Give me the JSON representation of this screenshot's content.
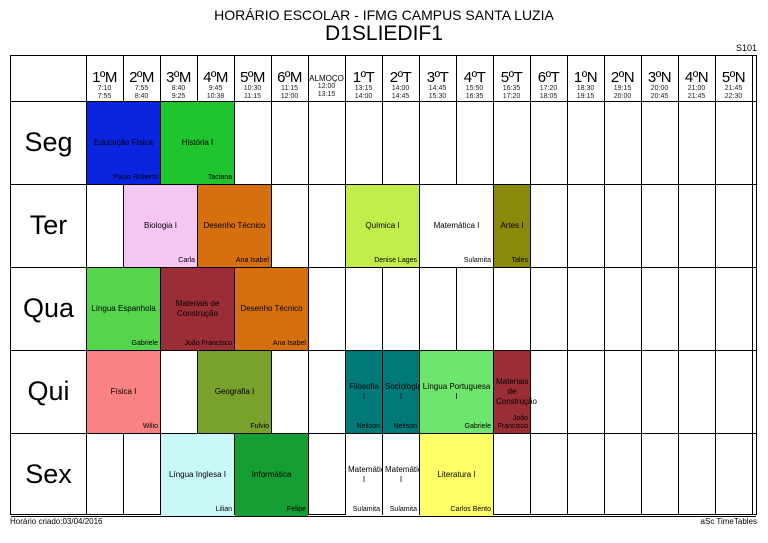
{
  "header": {
    "title": "HORÁRIO ESCOLAR - IFMG CAMPUS SANTA LUZIA",
    "class_name": "D1SLIEDIF1",
    "room": "S101"
  },
  "footer": {
    "created": "Horário criado:03/04/2016",
    "software": "aSc TimeTables"
  },
  "periods": [
    {
      "label": "1ºM",
      "start": "7:10",
      "end": "7:55"
    },
    {
      "label": "2ºM",
      "start": "7:55",
      "end": "8:40"
    },
    {
      "label": "3ºM",
      "start": "8:40",
      "end": "9:25"
    },
    {
      "label": "4ºM",
      "start": "9:45",
      "end": "10:38"
    },
    {
      "label": "5ºM",
      "start": "10:30",
      "end": "11:15"
    },
    {
      "label": "6ºM",
      "start": "11:15",
      "end": "12:00"
    },
    {
      "label": "ALMOÇO",
      "start": "12:00",
      "end": "13:15"
    },
    {
      "label": "1ºT",
      "start": "13:15",
      "end": "14:00"
    },
    {
      "label": "2ºT",
      "start": "14:00",
      "end": "14:45"
    },
    {
      "label": "3ºT",
      "start": "14:45",
      "end": "15:30"
    },
    {
      "label": "4ºT",
      "start": "15:50",
      "end": "16:35"
    },
    {
      "label": "5ºT",
      "start": "16:35",
      "end": "17:20"
    },
    {
      "label": "6ºT",
      "start": "17:20",
      "end": "18:05"
    },
    {
      "label": "1ºN",
      "start": "18:30",
      "end": "19:15"
    },
    {
      "label": "2ºN",
      "start": "19:15",
      "end": "20:00"
    },
    {
      "label": "3ºN",
      "start": "20:00",
      "end": "20:45"
    },
    {
      "label": "4ºN",
      "start": "21:00",
      "end": "21:45"
    },
    {
      "label": "5ºN",
      "start": "21:45",
      "end": "22:30"
    }
  ],
  "days": [
    "Seg",
    "Ter",
    "Qua",
    "Qui",
    "Sex"
  ],
  "lessons": [
    {
      "day": 0,
      "start": 0,
      "span": 2,
      "subject": "Educação Física",
      "teacher": "Paulo Roberto",
      "color": "#0b24e0"
    },
    {
      "day": 0,
      "start": 2,
      "span": 2,
      "subject": "História I",
      "teacher": "Taciana",
      "color": "#1fc42f"
    },
    {
      "day": 1,
      "start": 1,
      "span": 2,
      "subject": "Biologia I",
      "teacher": "Carla",
      "color": "#f6c6f3"
    },
    {
      "day": 1,
      "start": 3,
      "span": 2,
      "subject": "Desenho Técnico",
      "teacher": "Ana Isabel",
      "color": "#d6700e"
    },
    {
      "day": 1,
      "start": 7,
      "span": 2,
      "subject": "Química I",
      "teacher": "Denise Lages",
      "color": "#c2ee4c"
    },
    {
      "day": 1,
      "start": 9,
      "span": 2,
      "subject": "Matemática I",
      "teacher": "Sulamita",
      "color": "#ffffff"
    },
    {
      "day": 1,
      "start": 11,
      "span": 1,
      "subject": "Artes I",
      "teacher": "Tales",
      "color": "#898a0a"
    },
    {
      "day": 2,
      "start": 0,
      "span": 2,
      "subject": "Língua Espanhola",
      "teacher": "Gabriele",
      "color": "#55d54c"
    },
    {
      "day": 2,
      "start": 2,
      "span": 2,
      "subject": "Materiais de Construção",
      "teacher": "João Francisco",
      "color": "#9b2d37"
    },
    {
      "day": 2,
      "start": 4,
      "span": 2,
      "subject": "Desenho Técnico",
      "teacher": "Ana Isabel",
      "color": "#d6700e"
    },
    {
      "day": 3,
      "start": 0,
      "span": 2,
      "subject": "Física I",
      "teacher": "Wilio",
      "color": "#fa8282"
    },
    {
      "day": 3,
      "start": 3,
      "span": 2,
      "subject": "Geografia I",
      "teacher": "Fulvio",
      "color": "#78a22b"
    },
    {
      "day": 3,
      "start": 7,
      "span": 1,
      "subject": "Filosofia I",
      "teacher": "Neilson",
      "color": "#007a78"
    },
    {
      "day": 3,
      "start": 8,
      "span": 1,
      "subject": "Sociologia I",
      "teacher": "Neilson",
      "color": "#007a78"
    },
    {
      "day": 3,
      "start": 9,
      "span": 2,
      "subject": "Língua Portuguesa I",
      "teacher": "Gabriele",
      "color": "#6ee66d"
    },
    {
      "day": 3,
      "start": 11,
      "span": 1,
      "subject": "Materiais de Construção",
      "teacher": "João Francisco",
      "color": "#9b2d37"
    },
    {
      "day": 4,
      "start": 2,
      "span": 2,
      "subject": "Língua Inglesa I",
      "teacher": "Lilian",
      "color": "#c9f8f8"
    },
    {
      "day": 4,
      "start": 4,
      "span": 2,
      "subject": "Informática",
      "teacher": "Felipe",
      "color": "#159e33"
    },
    {
      "day": 4,
      "start": 7,
      "span": 1,
      "subject": "Matemática I",
      "teacher": "Sulamita",
      "color": "#ffffff"
    },
    {
      "day": 4,
      "start": 8,
      "span": 1,
      "subject": "Matemática I",
      "teacher": "Sulamita",
      "color": "#ffffff"
    },
    {
      "day": 4,
      "start": 9,
      "span": 2,
      "subject": "Literatura I",
      "teacher": "Carlos Bento",
      "color": "#ffff66"
    }
  ]
}
